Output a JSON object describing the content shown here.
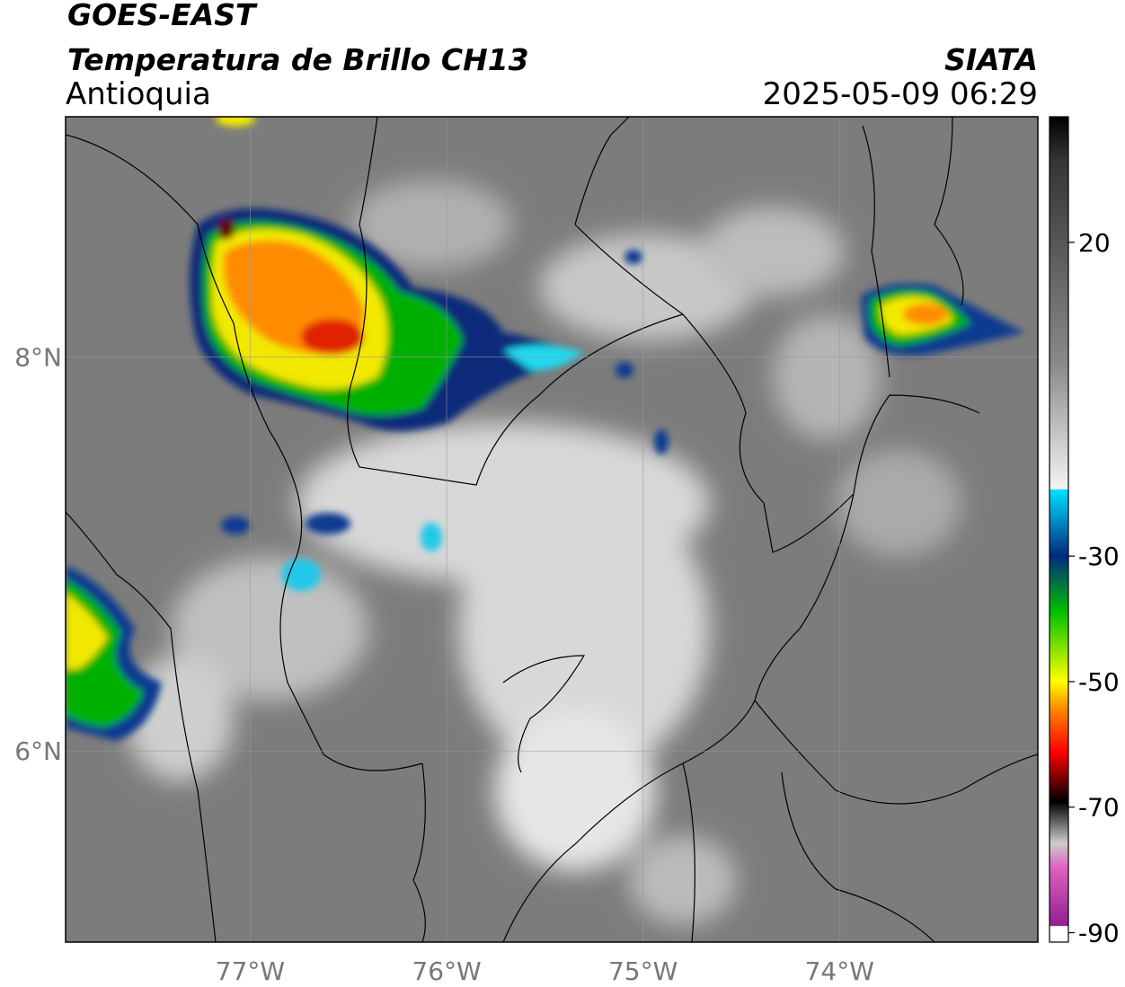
{
  "header": {
    "title": "GOES-EAST",
    "subtitle": "Temperatura de Brillo CH13",
    "region": "Antioquia",
    "source": "SIATA",
    "datetime": "2025-05-09 06:29"
  },
  "map": {
    "xlim": [
      -77.94,
      -72.99
    ],
    "ylim": [
      5.03,
      9.22
    ],
    "xticks": [
      {
        "value": -77,
        "label": "77°W"
      },
      {
        "value": -76,
        "label": "76°W"
      },
      {
        "value": -75,
        "label": "75°W"
      },
      {
        "value": -74,
        "label": "74°W"
      }
    ],
    "yticks": [
      {
        "value": 6,
        "label": "6°N"
      },
      {
        "value": 8,
        "label": "8°N"
      }
    ],
    "grid": true
  },
  "colorbar": {
    "lim": [
      -91.5,
      40
    ],
    "ticks": [
      20,
      -30,
      -50,
      -70,
      -90
    ]
  }
}
